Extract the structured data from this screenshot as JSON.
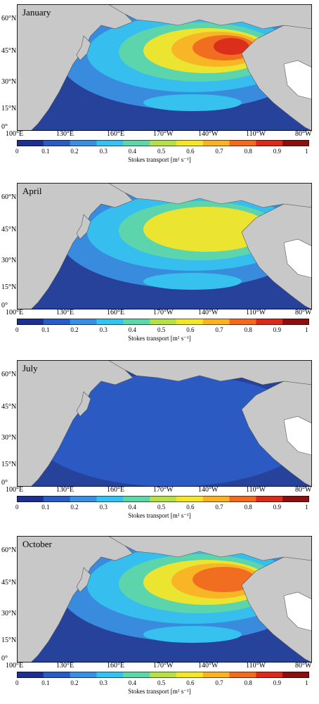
{
  "panels": [
    {
      "month": "January",
      "peak": 1.0
    },
    {
      "month": "April",
      "peak": 0.6
    },
    {
      "month": "July",
      "peak": 0.25
    },
    {
      "month": "October",
      "peak": 0.8
    }
  ],
  "lat_labels": [
    "60°N",
    "45°N",
    "30°N",
    "15°N",
    "0°"
  ],
  "lon_labels": [
    "100°E",
    "130°E",
    "160°E",
    "170°W",
    "140°W",
    "110°W",
    "80°W"
  ],
  "colorbar": {
    "ticks": [
      "0",
      "0.1",
      "0.2",
      "0.3",
      "0.4",
      "0.5",
      "0.6",
      "0.7",
      "0.8",
      "0.9",
      "1"
    ],
    "label": "Stokes transport [m² s⁻¹]",
    "colors": [
      "#1e2f8f",
      "#2a5cc4",
      "#3a8fe0",
      "#36c1ee",
      "#5fd6a8",
      "#b6e04a",
      "#f2e52a",
      "#f9b225",
      "#f06a20",
      "#d92a1c",
      "#8b0f0f"
    ]
  },
  "colors": {
    "land": "#c8c8c8",
    "ocean": "#26429a",
    "atlantic_land": "#ffffff"
  }
}
